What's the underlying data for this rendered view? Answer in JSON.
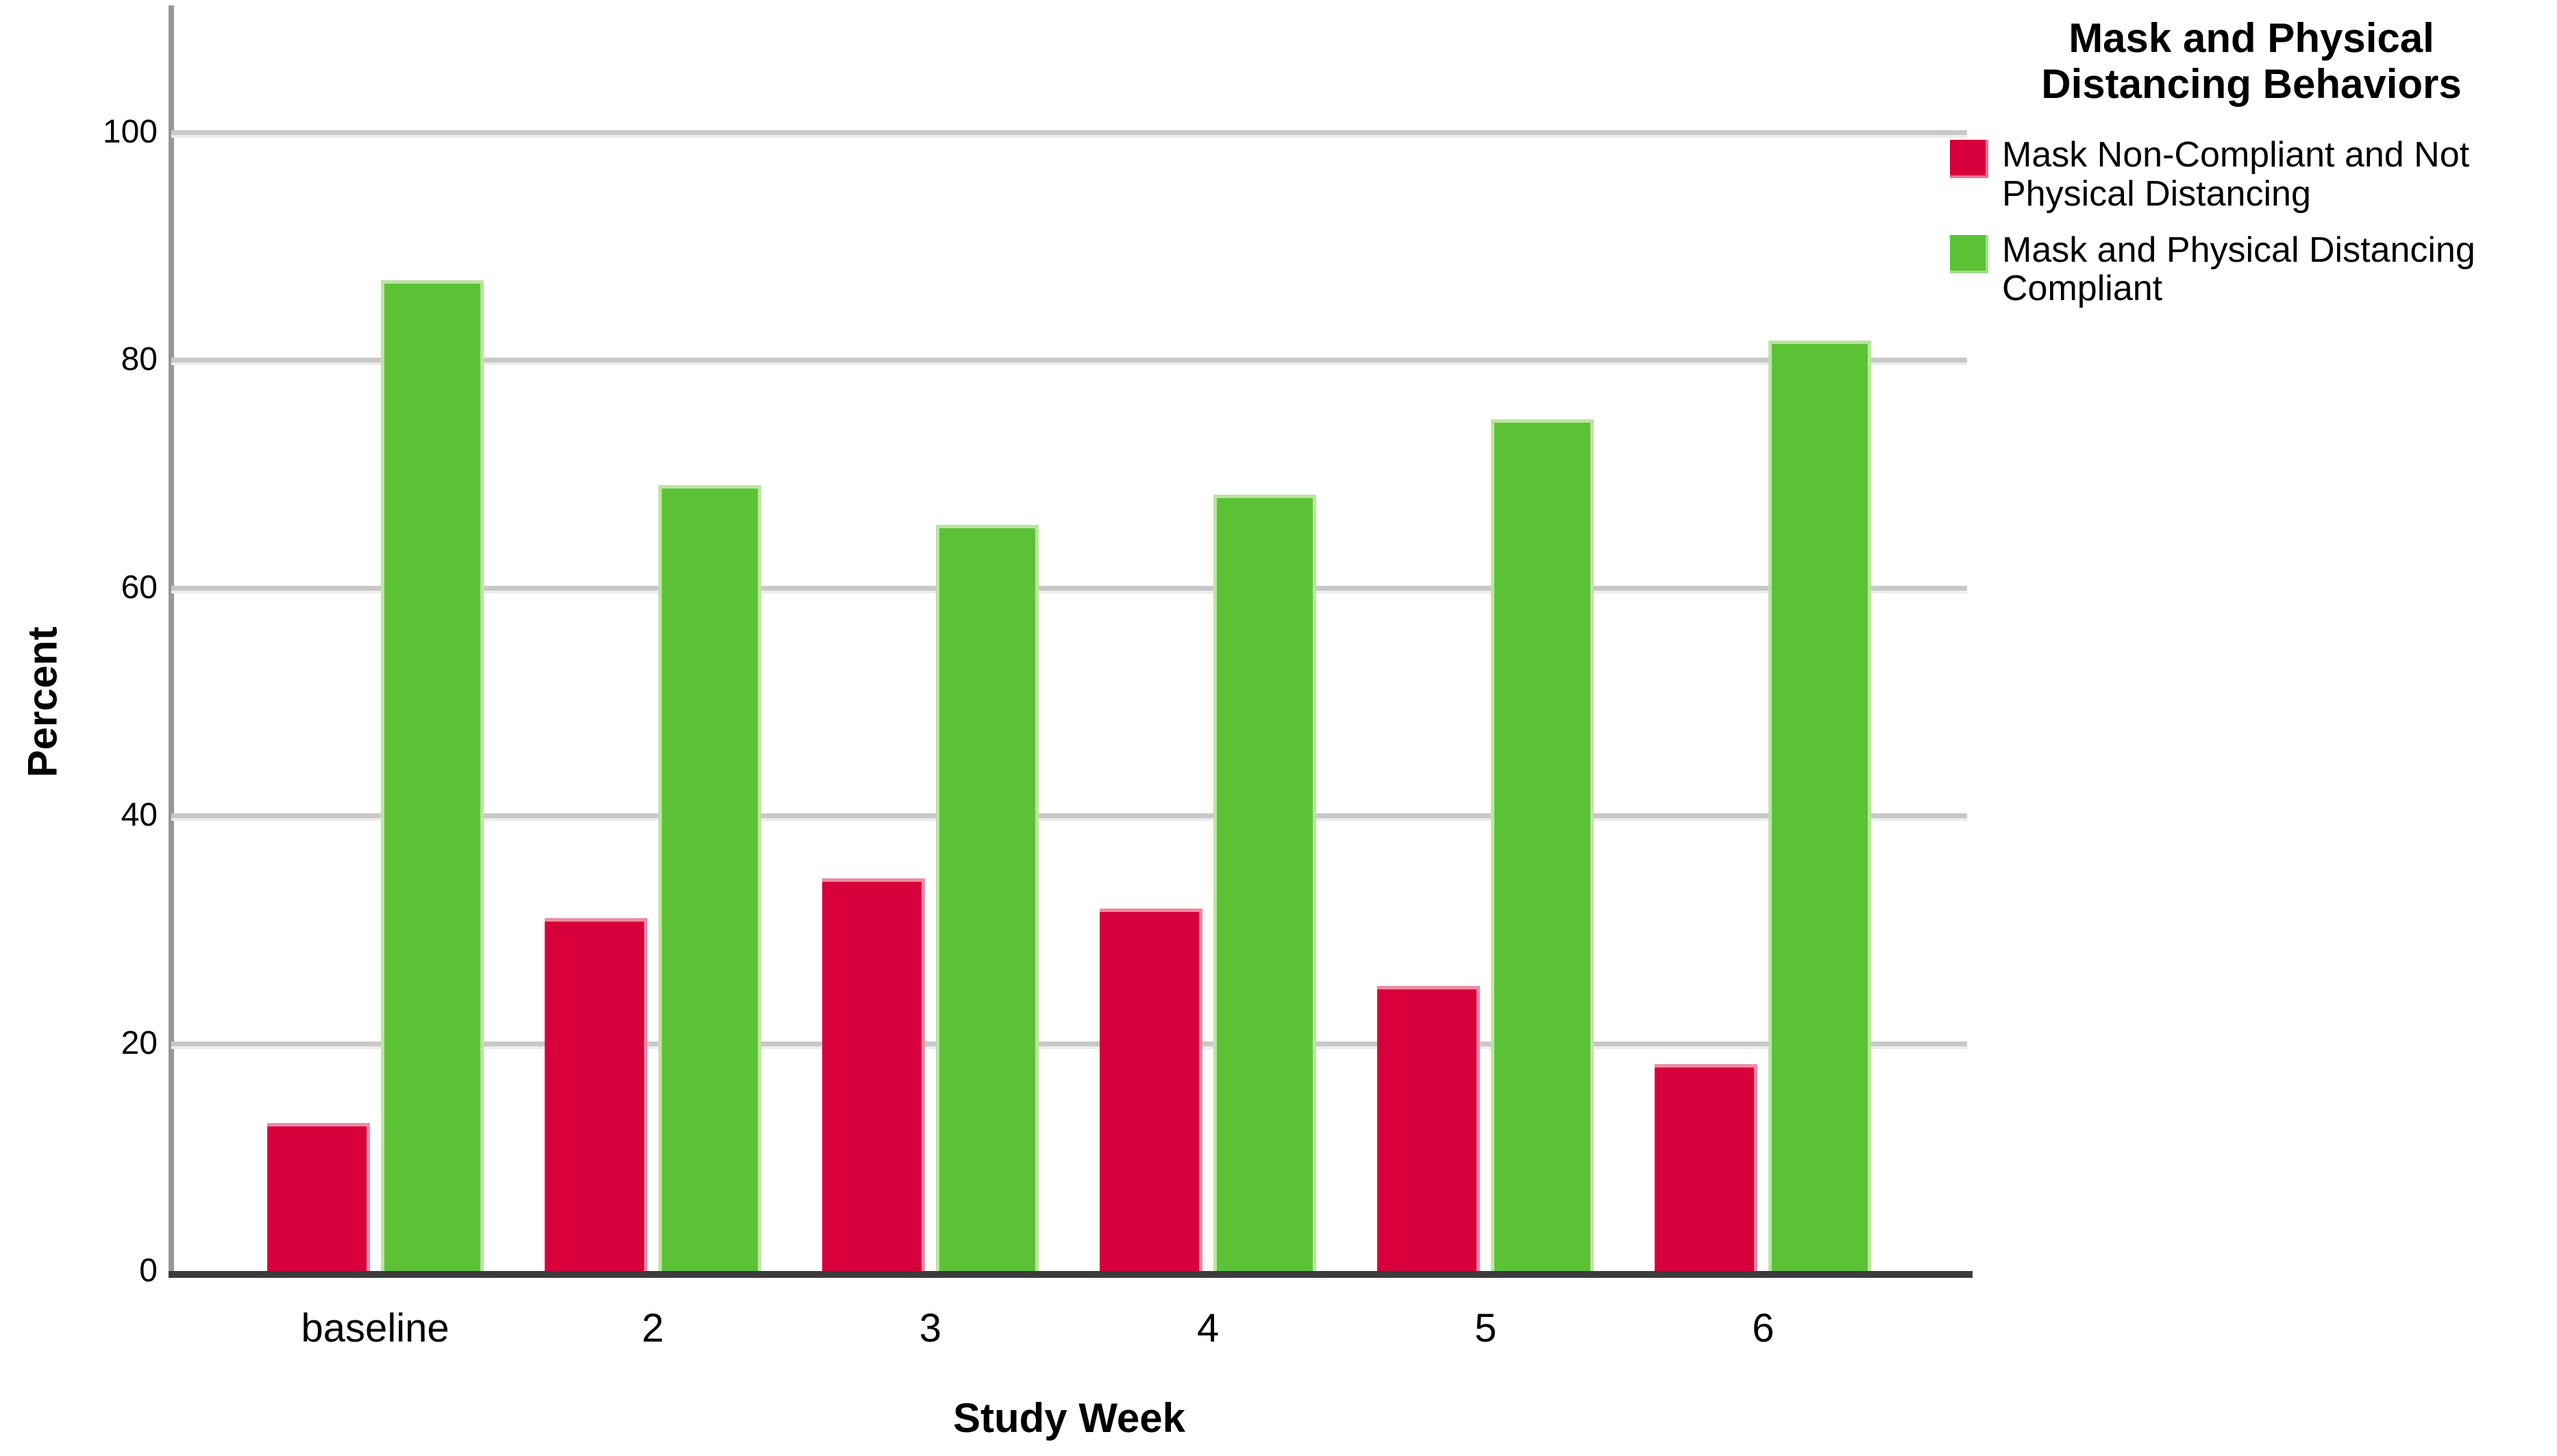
{
  "chart_data": {
    "type": "bar",
    "categories": [
      "baseline",
      "2",
      "3",
      "4",
      "5",
      "6"
    ],
    "series": [
      {
        "name": "Mask Non-Compliant and Not Physical Distancing",
        "color": "#d8003c",
        "values": [
          13,
          31,
          34.5,
          31.8,
          25,
          18.2
        ]
      },
      {
        "name": "Mask and Physical Distancing Compliant",
        "color": "#5bc236",
        "values": [
          87,
          69,
          65.5,
          68.2,
          74.8,
          81.7
        ]
      }
    ],
    "xlabel": "Study Week",
    "ylabel": "Percent",
    "ylim": [
      0,
      100
    ],
    "yticks": [
      0,
      20,
      40,
      60,
      80,
      100
    ],
    "grid": "horizontal",
    "legend_title": "Mask and Physical Distancing Behaviors",
    "legend_position": "right",
    "axis_colors": {
      "y_axis_line": "#979797",
      "x_axis_line": "#3c3c3c",
      "gridline": "#c8c8c8"
    }
  }
}
